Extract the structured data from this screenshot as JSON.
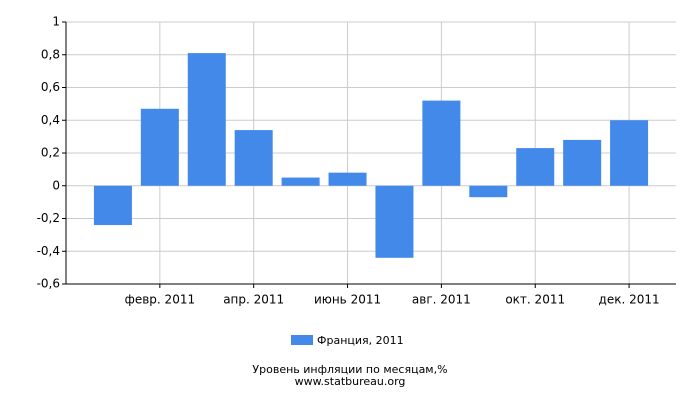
{
  "chart_data": {
    "type": "bar",
    "title": "Уровень инфляции по месяцам,%",
    "source": "www.statbureau.org",
    "categories": [
      null,
      "февр. 2011",
      null,
      "апр. 2011",
      null,
      "июнь 2011",
      null,
      "авг. 2011",
      null,
      "окт. 2011",
      null,
      "дек. 2011"
    ],
    "series": [
      {
        "name": "Франция, 2011",
        "color": "#4289ea",
        "values": [
          -0.24,
          0.47,
          0.81,
          0.34,
          0.05,
          0.08,
          -0.44,
          0.52,
          -0.07,
          0.23,
          0.28,
          0.4
        ]
      }
    ],
    "ylim": [
      -0.6,
      1
    ],
    "yticks": [
      {
        "value": -0.6,
        "label": "-0,6"
      },
      {
        "value": -0.4,
        "label": "-0,4"
      },
      {
        "value": -0.2,
        "label": "-0,2"
      },
      0,
      {
        "value": 0.2,
        "label": "0,2"
      },
      {
        "value": 0.4,
        "label": "0,4"
      },
      {
        "value": 0.6,
        "label": "0,6"
      },
      {
        "value": 0.8,
        "label": "0,8"
      },
      1
    ],
    "grid": true
  }
}
